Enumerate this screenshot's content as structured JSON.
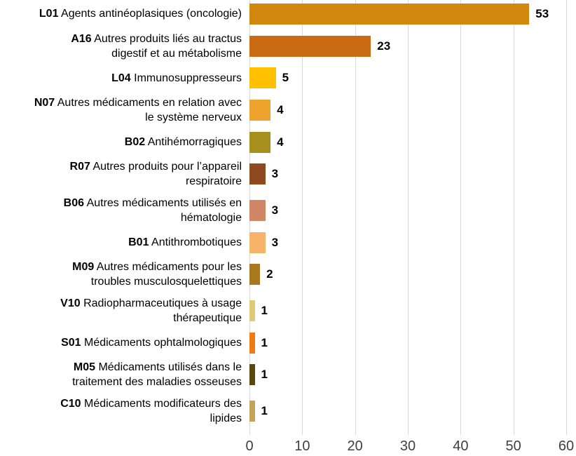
{
  "chart_data": {
    "type": "bar",
    "orientation": "horizontal",
    "title": "",
    "xlabel": "",
    "ylabel": "",
    "xlim": [
      0,
      60
    ],
    "x_ticks": [
      "0",
      "10",
      "20",
      "30",
      "40",
      "50",
      "60"
    ],
    "x_tick_values": [
      0,
      10,
      20,
      30,
      40,
      50,
      60
    ],
    "grid": "vertical",
    "legend": "none",
    "background_color": "#ffffff",
    "gridline_color": "#d9d9d9",
    "axis_label_color": "#404040",
    "value_label_color": "#000000",
    "category_label_color": "#000000",
    "categories": [
      {
        "code": "L01",
        "lines": [
          "Agents antinéoplasiques (oncologie)"
        ]
      },
      {
        "code": "A16",
        "lines": [
          "Autres produits liés au tractus",
          "digestif et au métabolisme"
        ]
      },
      {
        "code": "L04",
        "lines": [
          "Immunosuppresseurs"
        ]
      },
      {
        "code": "N07",
        "lines": [
          "Autres médicaments en relation avec",
          "le système nerveux"
        ]
      },
      {
        "code": "B02",
        "lines": [
          "Antihémorragiques"
        ]
      },
      {
        "code": "R07",
        "lines": [
          "Autres produits pour l’appareil",
          "respiratoire"
        ]
      },
      {
        "code": "B06",
        "lines": [
          "Autres médicaments utilisés en",
          "hématologie"
        ]
      },
      {
        "code": "B01",
        "lines": [
          "Antithrombotiques"
        ]
      },
      {
        "code": "M09",
        "lines": [
          "Autres médicaments pour les",
          "troubles musculosquelettiques"
        ]
      },
      {
        "code": "V10",
        "lines": [
          "Radiopharmaceutiques à usage",
          "thérapeutique"
        ]
      },
      {
        "code": "S01",
        "lines": [
          "Médicaments ophtalmologiques"
        ]
      },
      {
        "code": "M05",
        "lines": [
          "Médicaments utilisés dans le",
          "traitement des maladies osseuses"
        ]
      },
      {
        "code": "C10",
        "lines": [
          "Médicaments modificateurs des",
          "lipides"
        ]
      }
    ],
    "values": [
      53,
      23,
      5,
      4,
      4,
      3,
      3,
      3,
      2,
      1,
      1,
      1,
      1
    ],
    "bar_colors": [
      "#D2870E",
      "#CA6B13",
      "#FFC000",
      "#F0A22E",
      "#A68F1C",
      "#8D4A21",
      "#D08767",
      "#F5B46A",
      "#A8781E",
      "#DECB75",
      "#F07A16",
      "#5A480F",
      "#C1A456"
    ]
  }
}
